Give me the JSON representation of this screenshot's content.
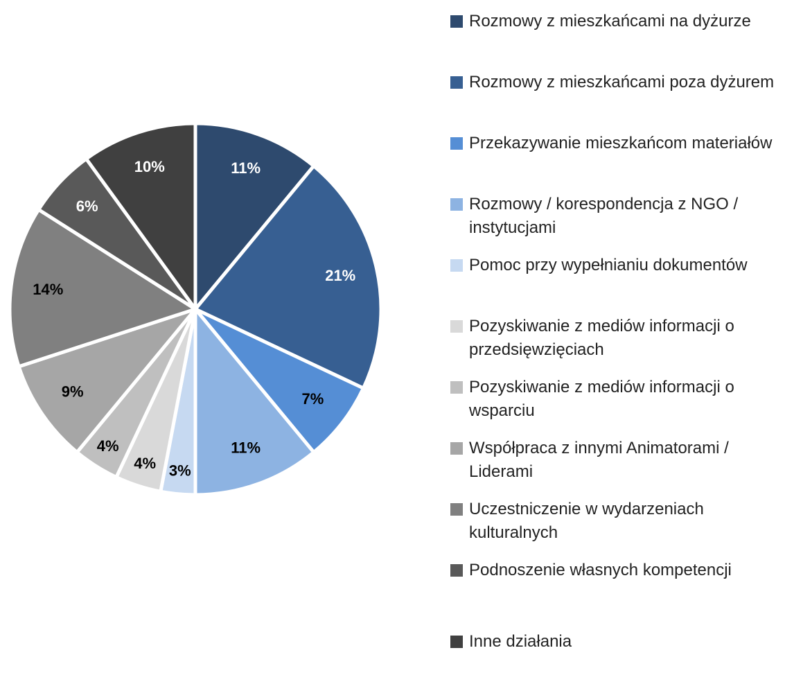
{
  "chart_data": {
    "type": "pie",
    "categories": [
      "Rozmowy z mieszkańcami na dyżurze",
      "Rozmowy z mieszkańcami poza dyżurem",
      "Przekazywanie mieszkańcom materiałów",
      "Rozmowy / korespondencja z NGO / instytucjami",
      "Pomoc przy wypełnianiu dokumentów",
      "Pozyskiwanie z mediów informacji o przedsięwzięciach",
      "Pozyskiwanie z mediów informacji o wsparciu",
      "Współpraca z innymi Animatorami / Liderami",
      "Uczestniczenie w wydarzeniach kulturalnych",
      "Podnoszenie własnych kompetencji",
      "Inne działania"
    ],
    "values": [
      11,
      21,
      7,
      11,
      3,
      4,
      4,
      9,
      14,
      6,
      10
    ],
    "value_labels": [
      "11%",
      "21%",
      "7%",
      "11%",
      "3%",
      "4%",
      "4%",
      "9%",
      "14%",
      "6%",
      "10%"
    ],
    "colors": [
      "#2e4a6e",
      "#375f92",
      "#558ed5",
      "#8db3e2",
      "#c6d9f1",
      "#d9d9d9",
      "#bfbfbf",
      "#a6a6a6",
      "#808080",
      "#595959",
      "#404040"
    ],
    "legend": "right"
  }
}
